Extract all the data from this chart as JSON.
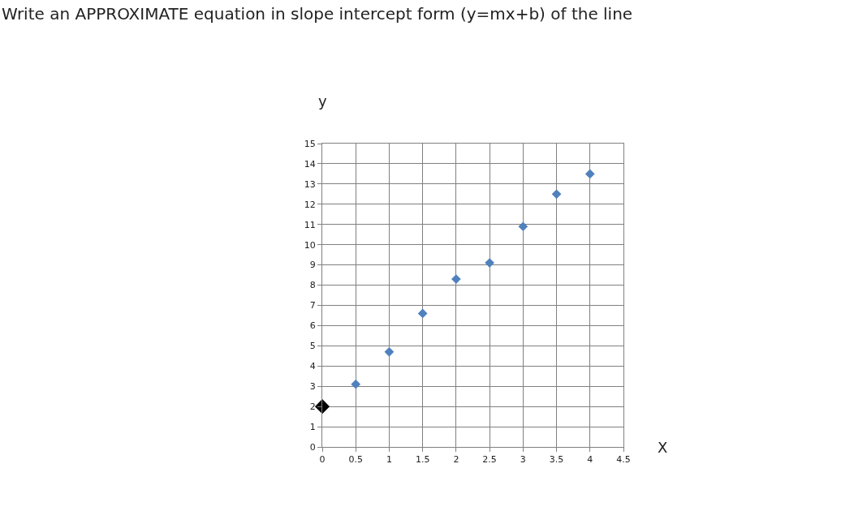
{
  "chart_data": {
    "type": "scatter",
    "title": "Write an APPROXIMATE equation in slope intercept form (y=mx+b) of the line",
    "xlabel": "X",
    "ylabel": "y",
    "series": [
      {
        "color": "#4f81bd",
        "x": [
          0.5,
          1,
          1.5,
          2,
          2.5,
          3,
          3.5,
          4
        ],
        "values": [
          3.1,
          4.7,
          6.6,
          8.3,
          9.1,
          10.9,
          12.5,
          13.5
        ]
      },
      {
        "color": "#000000",
        "x": [
          0
        ],
        "values": [
          2
        ]
      }
    ],
    "xlim": [
      0,
      4.5
    ],
    "xticks": [
      0,
      0.5,
      1,
      1.5,
      2,
      2.5,
      3,
      3.5,
      4,
      4.5
    ],
    "ylim": [
      0,
      15
    ],
    "yticks": [
      0,
      1,
      2,
      3,
      4,
      5,
      6,
      7,
      8,
      9,
      10,
      11,
      12,
      13,
      14,
      15
    ],
    "grid": true,
    "marker": "diamond"
  }
}
